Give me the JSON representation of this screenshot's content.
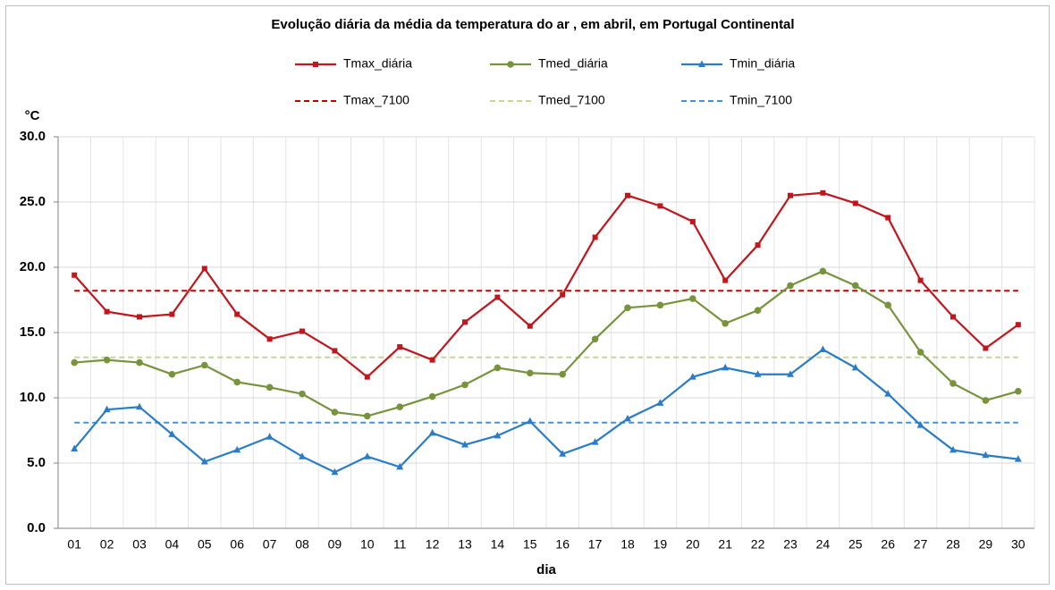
{
  "chart_data": {
    "type": "line",
    "title": "Evolução diária da média da temperatura do ar , em abril, em Portugal Continental",
    "y_label": "°C",
    "x_label": "dia",
    "categories": [
      "01",
      "02",
      "03",
      "04",
      "05",
      "06",
      "07",
      "08",
      "09",
      "10",
      "11",
      "12",
      "13",
      "14",
      "15",
      "16",
      "17",
      "18",
      "19",
      "20",
      "21",
      "22",
      "23",
      "24",
      "25",
      "26",
      "27",
      "28",
      "29",
      "30"
    ],
    "series": [
      {
        "name": "Tmax_diária",
        "color": "#c0161e",
        "marker": "square",
        "values": [
          19.4,
          16.6,
          16.2,
          16.4,
          19.9,
          16.4,
          14.5,
          15.1,
          13.6,
          11.6,
          13.9,
          12.9,
          15.8,
          17.7,
          15.5,
          17.9,
          22.3,
          25.5,
          24.7,
          23.5,
          19.0,
          21.7,
          25.5,
          25.7,
          24.9,
          23.8,
          19.0,
          16.2,
          13.8,
          15.6
        ]
      },
      {
        "name": "Tmed_diária",
        "color": "#77933c",
        "marker": "circle",
        "values": [
          12.7,
          12.9,
          12.7,
          11.8,
          12.5,
          11.2,
          10.8,
          10.3,
          8.9,
          8.6,
          9.3,
          10.1,
          11.0,
          12.3,
          11.9,
          11.8,
          14.5,
          16.9,
          17.1,
          17.6,
          15.7,
          16.7,
          18.6,
          19.7,
          18.6,
          17.1,
          13.5,
          11.1,
          9.8,
          10.5
        ]
      },
      {
        "name": "Tmin_diária",
        "color": "#2a7cc7",
        "marker": "triangle",
        "values": [
          6.1,
          9.1,
          9.3,
          7.2,
          5.1,
          6.0,
          7.0,
          5.5,
          4.3,
          5.5,
          4.7,
          7.3,
          6.4,
          7.1,
          8.2,
          5.7,
          6.6,
          8.4,
          9.6,
          11.6,
          12.3,
          11.8,
          11.8,
          13.7,
          12.3,
          10.3,
          7.9,
          6.0,
          5.6,
          5.3
        ]
      }
    ],
    "reference_lines": [
      {
        "name": "Tmax_7100",
        "color": "#c00000",
        "value": 18.2
      },
      {
        "name": "Tmed_7100",
        "color": "#c4d79b",
        "value": 13.1
      },
      {
        "name": "Tmin_7100",
        "color": "#4a8fd4",
        "value": 8.1
      }
    ],
    "ylim": [
      0,
      30
    ],
    "yticks": [
      {
        "value": 0,
        "label": "0.0"
      },
      {
        "value": 5,
        "label": "5.0"
      },
      {
        "value": 10,
        "label": "10.0"
      },
      {
        "value": 15,
        "label": "15.0"
      },
      {
        "value": 20,
        "label": "20.0"
      },
      {
        "value": 25,
        "label": "25.0"
      },
      {
        "value": 30,
        "label": "30.0"
      }
    ],
    "grid": true
  }
}
